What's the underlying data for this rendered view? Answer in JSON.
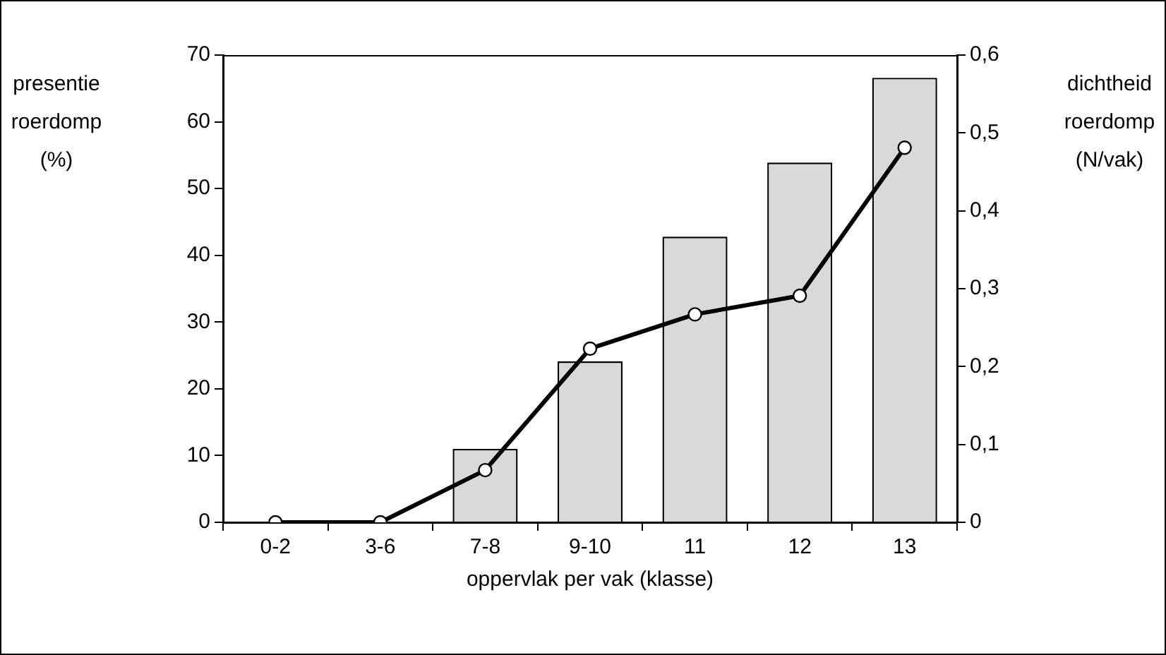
{
  "chart_data": {
    "type": "bar",
    "xlabel": "oppervlak per vak (klasse)",
    "ylabel": "presentie roerdomp (%)",
    "y2label": "dichtheid roerdomp (N/vak)",
    "categories": [
      "0-2",
      "3-6",
      "7-8",
      "9-10",
      "11",
      "12",
      "13"
    ],
    "series": [
      {
        "color": "#d9d9d9",
        "values": [
          0,
          0,
          11,
          24.1,
          42.8,
          53.9,
          66.6
        ]
      },
      {
        "type": "line",
        "axis": "y2",
        "color": "#000000",
        "values": [
          0,
          0,
          0.067,
          0.223,
          0.267,
          0.291,
          0.481
        ]
      }
    ],
    "ylim": [
      0,
      70
    ],
    "yticks": [
      0,
      10,
      20,
      30,
      40,
      50,
      60,
      70
    ],
    "y2lim": [
      0,
      0.6
    ],
    "y2ticks": [
      0,
      {
        "value": 0.1,
        "label": "0,1"
      },
      {
        "value": 0.2,
        "label": "0,2"
      },
      {
        "value": 0.3,
        "label": "0,3"
      },
      {
        "value": 0.4,
        "label": "0,4"
      },
      {
        "value": 0.5,
        "label": "0,5"
      },
      {
        "value": 0.6,
        "label": "0,6"
      }
    ],
    "grid": false,
    "legend": false,
    "marker": "circle",
    "line_style": "solid"
  }
}
